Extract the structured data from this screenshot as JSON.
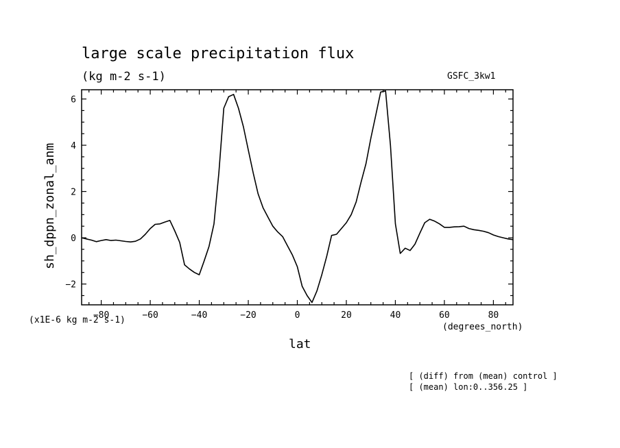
{
  "header": {
    "title": "large scale precipitation flux",
    "subtitle": "(kg m-2 s-1)",
    "run": "GSFC_3kw1"
  },
  "labels": {
    "scale": "(x1E-6 kg m-2 s-1)",
    "x_units": "(degrees_north)",
    "note1": "[ (diff) from (mean) control ]",
    "note2": "[ (mean) lon:0..356.25 ]"
  },
  "chart_data": {
    "type": "line",
    "xlabel": "lat",
    "ylabel": "sh_dppn_zonal_anm",
    "xlim": [
      -88.0,
      88.0
    ],
    "ylim": [
      -2.9,
      6.4
    ],
    "xticks": [
      -80,
      -60,
      -40,
      -20,
      0,
      20,
      40,
      60,
      80
    ],
    "yticks": [
      -2,
      0,
      2,
      4,
      6
    ],
    "grid": false,
    "series": [
      {
        "x": [
          -88,
          -86,
          -84,
          -82,
          -80,
          -78,
          -76,
          -74,
          -72,
          -70,
          -68,
          -66,
          -64,
          -62,
          -60,
          -58,
          -56,
          -54,
          -52,
          -50,
          -48,
          -46,
          -44,
          -42,
          -40,
          -38,
          -36,
          -34,
          -32,
          -30,
          -28,
          -26,
          -24,
          -22,
          -20,
          -18,
          -16,
          -14,
          -12,
          -10,
          -8,
          -6,
          -4,
          -2,
          0,
          2,
          4,
          6,
          8,
          10,
          12,
          14,
          16,
          18,
          20,
          22,
          24,
          26,
          28,
          30,
          32,
          34,
          36,
          38,
          40,
          42,
          44,
          46,
          48,
          50,
          52,
          54,
          56,
          58,
          60,
          62,
          64,
          66,
          68,
          70,
          72,
          74,
          76,
          78,
          80,
          82,
          84,
          86,
          88
        ],
        "y": [
          0.0,
          -0.05,
          -0.1,
          -0.17,
          -0.12,
          -0.08,
          -0.12,
          -0.1,
          -0.13,
          -0.16,
          -0.18,
          -0.15,
          -0.05,
          0.15,
          0.4,
          0.58,
          0.6,
          0.68,
          0.75,
          0.3,
          -0.2,
          -1.17,
          -1.35,
          -1.5,
          -1.6,
          -1.0,
          -0.37,
          0.6,
          2.8,
          5.6,
          6.1,
          6.2,
          5.6,
          4.8,
          3.8,
          2.8,
          1.9,
          1.3,
          0.9,
          0.5,
          0.25,
          0.05,
          -0.35,
          -0.75,
          -1.25,
          -2.1,
          -2.5,
          -2.8,
          -2.3,
          -1.6,
          -0.8,
          0.1,
          0.15,
          0.4,
          0.65,
          1.0,
          1.55,
          2.4,
          3.2,
          4.3,
          5.3,
          6.3,
          6.35,
          4.0,
          0.6,
          -0.68,
          -0.45,
          -0.55,
          -0.28,
          0.2,
          0.65,
          0.8,
          0.72,
          0.6,
          0.45,
          0.45,
          0.47,
          0.48,
          0.5,
          0.4,
          0.35,
          0.32,
          0.28,
          0.22,
          0.12,
          0.05,
          0.0,
          -0.05,
          -0.08
        ]
      }
    ]
  }
}
